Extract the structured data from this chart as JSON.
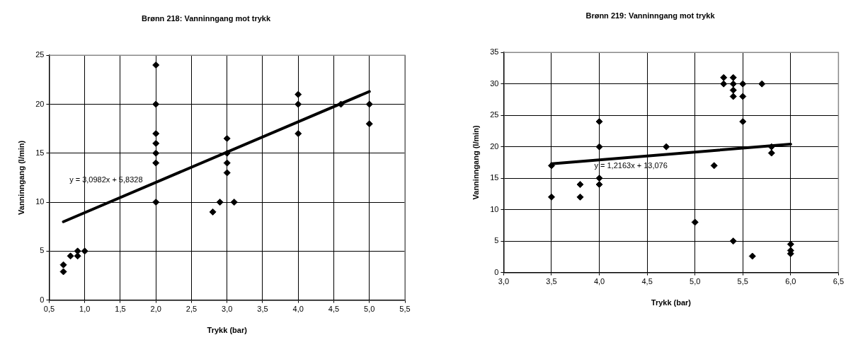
{
  "chart_data": [
    {
      "type": "scatter",
      "title": "Brønn 218: Vanninngang mot trykk",
      "xlabel": "Trykk (bar)",
      "ylabel": "Vanninngang (l/min)",
      "marker": "diamond",
      "grid": true,
      "legend": false,
      "xlim": [
        0.5,
        5.5
      ],
      "xticks": [
        {
          "value": 0.5,
          "label": "0,5"
        },
        {
          "value": 1,
          "label": "1,0"
        },
        {
          "value": 1.5,
          "label": "1,5"
        },
        {
          "value": 2,
          "label": "2,0"
        },
        {
          "value": 2.5,
          "label": "2,5"
        },
        {
          "value": 3,
          "label": "3,0"
        },
        {
          "value": 3.5,
          "label": "3,5"
        },
        {
          "value": 4,
          "label": "4,0"
        },
        {
          "value": 4.5,
          "label": "4,5"
        },
        {
          "value": 5,
          "label": "5,0"
        },
        {
          "value": 5.5,
          "label": "5,5"
        }
      ],
      "ylim": [
        0,
        25
      ],
      "yticks": [
        0,
        5,
        10,
        15,
        20,
        25
      ],
      "series": [
        {
          "type": "scatter",
          "color": "#000000",
          "x": [
            0.7,
            0.7,
            0.8,
            0.9,
            0.9,
            1.0,
            2,
            2,
            2,
            2,
            2,
            2,
            2,
            2.8,
            2.9,
            3,
            3,
            3,
            3,
            3.1,
            4,
            4,
            4,
            4.6,
            5,
            5
          ],
          "values": [
            3.6,
            2.9,
            4.5,
            5,
            4.5,
            5,
            24,
            20,
            17,
            16,
            15,
            14,
            10,
            9,
            10,
            16.5,
            15,
            14,
            13,
            10,
            21,
            20,
            17,
            20,
            20,
            18
          ]
        },
        {
          "type": "line",
          "color": "#000000",
          "x": [
            0.7,
            5.0
          ],
          "values": [
            8.0,
            21.3
          ],
          "marker": "none"
        }
      ],
      "annotations": [
        "y = 3,0982x + 5,8328"
      ]
    },
    {
      "type": "scatter",
      "title": "Brønn 219: Vanninngang mot trykk",
      "xlabel": "Trykk (bar)",
      "ylabel": "Vanninngang (l/min)",
      "marker": "diamond",
      "grid": true,
      "legend": false,
      "xlim": [
        3,
        6.5
      ],
      "xticks": [
        {
          "value": 3,
          "label": "3,0"
        },
        {
          "value": 3.5,
          "label": "3,5"
        },
        {
          "value": 4,
          "label": "4,0"
        },
        {
          "value": 4.5,
          "label": "4,5"
        },
        {
          "value": 5,
          "label": "5,0"
        },
        {
          "value": 5.5,
          "label": "5,5"
        },
        {
          "value": 6,
          "label": "6,0"
        },
        {
          "value": 6.5,
          "label": "6,5"
        }
      ],
      "ylim": [
        0,
        35
      ],
      "yticks": [
        0,
        5,
        10,
        15,
        20,
        25,
        30,
        35
      ],
      "series": [
        {
          "type": "scatter",
          "color": "#000000",
          "x": [
            3.5,
            3.5,
            3.8,
            3.8,
            4,
            4,
            4,
            4,
            4.7,
            5,
            5.2,
            5.3,
            5.3,
            5.4,
            5.4,
            5.4,
            5.4,
            5.4,
            5.5,
            5.5,
            5.5,
            5.6,
            5.7,
            5.8,
            5.8,
            6,
            6,
            6
          ],
          "values": [
            17,
            12,
            14,
            12,
            24,
            20,
            15,
            14,
            20,
            8,
            17,
            31,
            30,
            31,
            30,
            29,
            28,
            5,
            30,
            28,
            24,
            2.6,
            30,
            20,
            19,
            4.5,
            3.5,
            3
          ]
        },
        {
          "type": "line",
          "color": "#000000",
          "x": [
            3.5,
            6.0
          ],
          "values": [
            17.3,
            20.4
          ],
          "marker": "none"
        }
      ],
      "annotations": [
        "y = 1,2163x + 13,076"
      ]
    }
  ]
}
